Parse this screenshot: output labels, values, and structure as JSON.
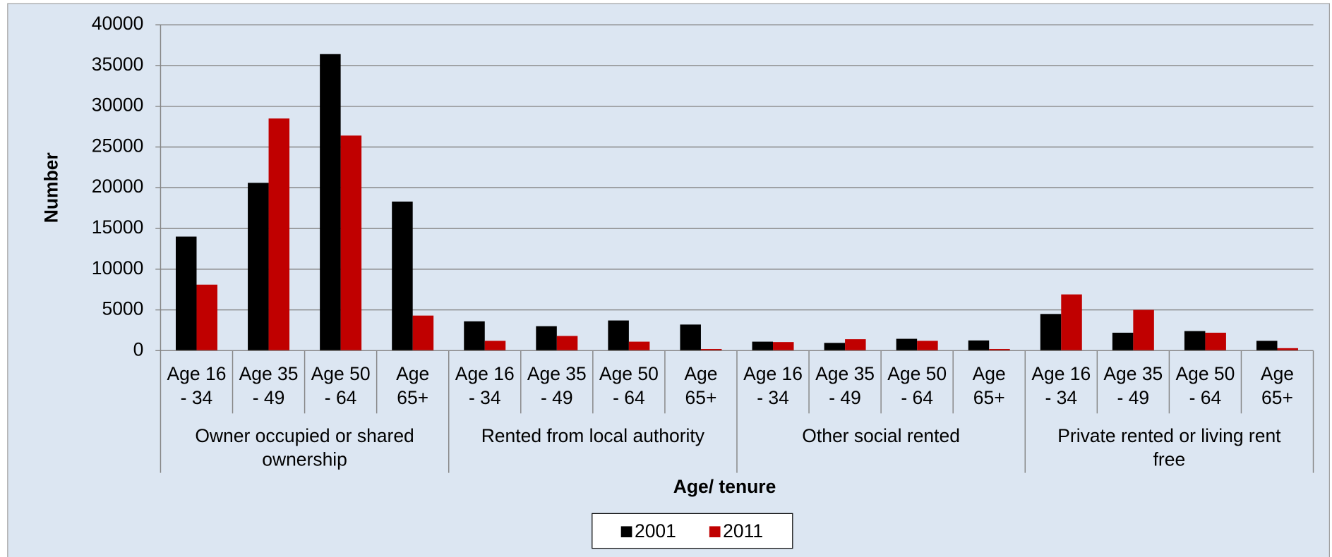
{
  "chart_data": {
    "type": "bar",
    "x_label": "Age/ tenure",
    "y_label": "Number",
    "groups": [
      {
        "name": "Owner occupied or shared ownership",
        "categories": [
          "Age 16 - 34",
          "Age 35 - 49",
          "Age 50 - 64",
          "Age 65+"
        ]
      },
      {
        "name": "Rented from local authority",
        "categories": [
          "Age 16 - 34",
          "Age 35 - 49",
          "Age 50 - 64",
          "Age 65+"
        ]
      },
      {
        "name": "Other social rented",
        "categories": [
          "Age 16 - 34",
          "Age 35 - 49",
          "Age 50 - 64",
          "Age 65+"
        ]
      },
      {
        "name": "Private rented or living rent free",
        "categories": [
          "Age 16 - 34",
          "Age 35 - 49",
          "Age 50 - 64",
          "Age 65+"
        ]
      }
    ],
    "series": [
      {
        "name": "2001",
        "color": "#000000",
        "values": [
          14000,
          20600,
          36400,
          18300,
          3600,
          3000,
          3700,
          3200,
          1100,
          950,
          1450,
          1250,
          4500,
          2200,
          2400,
          1200
        ]
      },
      {
        "name": "2011",
        "color": "#c00000",
        "values": [
          8100,
          28500,
          26400,
          4300,
          1200,
          1800,
          1100,
          200,
          1050,
          1400,
          1200,
          200,
          6900,
          5000,
          2200,
          300
        ]
      }
    ],
    "ylim": [
      0,
      40000
    ],
    "yticks": [
      0,
      5000,
      10000,
      15000,
      20000,
      25000,
      30000,
      35000,
      40000
    ],
    "grid": true,
    "legend": "bottom"
  }
}
